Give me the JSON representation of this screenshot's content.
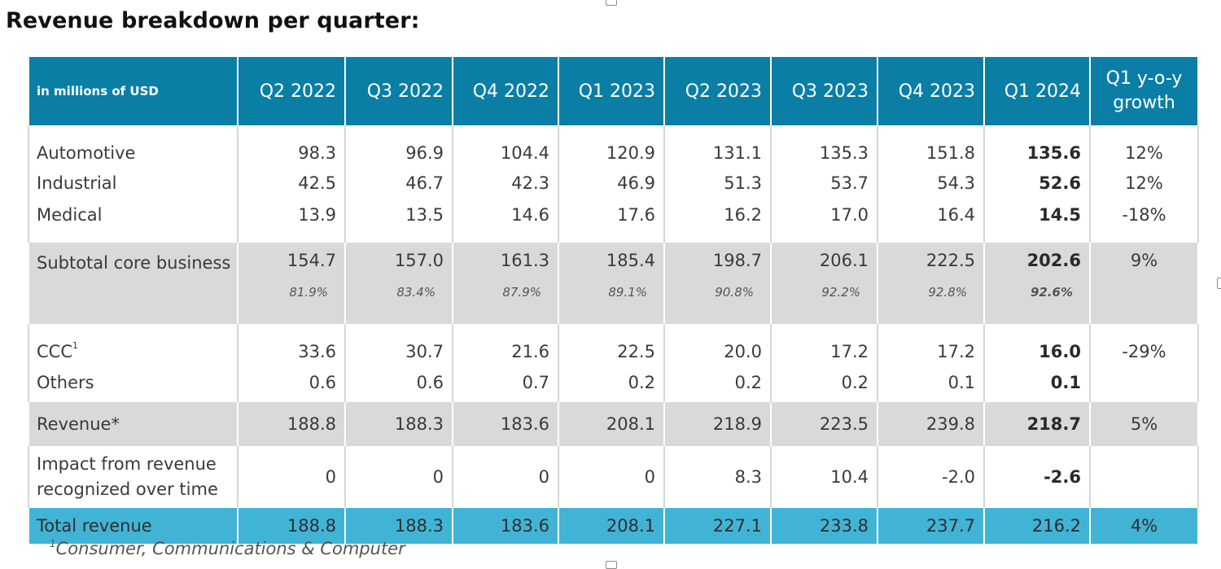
{
  "title": "Revenue breakdown per quarter:",
  "table": {
    "corner_label": "in millions of USD",
    "columns": [
      "Q2 2022",
      "Q3 2022",
      "Q4 2022",
      "Q1 2023",
      "Q2 2023",
      "Q3 2023",
      "Q4 2023",
      "Q1 2024"
    ],
    "growth_header": "Q1 y-o-y growth",
    "rows": [
      {
        "label": "Automotive",
        "values": [
          "98.3",
          "96.9",
          "104.4",
          "120.9",
          "131.1",
          "135.3",
          "151.8",
          "135.6"
        ],
        "growth": "12%"
      },
      {
        "label": "Industrial",
        "values": [
          "42.5",
          "46.7",
          "42.3",
          "46.9",
          "51.3",
          "53.7",
          "54.3",
          "52.6"
        ],
        "growth": "12%"
      },
      {
        "label": "Medical",
        "values": [
          "13.9",
          "13.5",
          "14.6",
          "17.6",
          "16.2",
          "17.0",
          "16.4",
          "14.5"
        ],
        "growth": "-18%"
      },
      {
        "label": "Subtotal core business",
        "values": [
          "154.7",
          "157.0",
          "161.3",
          "185.4",
          "198.7",
          "206.1",
          "222.5",
          "202.6"
        ],
        "shares": [
          "81.9%",
          "83.4%",
          "87.9%",
          "89.1%",
          "90.8%",
          "92.2%",
          "92.8%",
          "92.6%"
        ],
        "growth": "9%"
      },
      {
        "label": "CCC",
        "footnote_mark": "1",
        "values": [
          "33.6",
          "30.7",
          "21.6",
          "22.5",
          "20.0",
          "17.2",
          "17.2",
          "16.0"
        ],
        "growth": "-29%"
      },
      {
        "label": "Others",
        "values": [
          "0.6",
          "0.6",
          "0.7",
          "0.2",
          "0.2",
          "0.2",
          "0.1",
          "0.1"
        ],
        "growth": ""
      },
      {
        "label": "Revenue*",
        "values": [
          "188.8",
          "188.3",
          "183.6",
          "208.1",
          "218.9",
          "223.5",
          "239.8",
          "218.7"
        ],
        "growth": "5%"
      },
      {
        "label": "Impact from revenue recognized over time",
        "values": [
          "0",
          "0",
          "0",
          "0",
          "8.3",
          "10.4",
          "-2.0",
          "-2.6"
        ],
        "growth": ""
      },
      {
        "label": "Total revenue",
        "values": [
          "188.8",
          "188.3",
          "183.6",
          "208.1",
          "227.1",
          "233.8",
          "237.7",
          "216.2"
        ],
        "growth": "4%"
      }
    ]
  },
  "footnote": {
    "mark": "1",
    "text": "Consumer, Communications & Computer"
  },
  "colors": {
    "header": "#0b7ea6",
    "subtotal_band": "#d9d9d9",
    "total_band": "#41b4d6"
  }
}
